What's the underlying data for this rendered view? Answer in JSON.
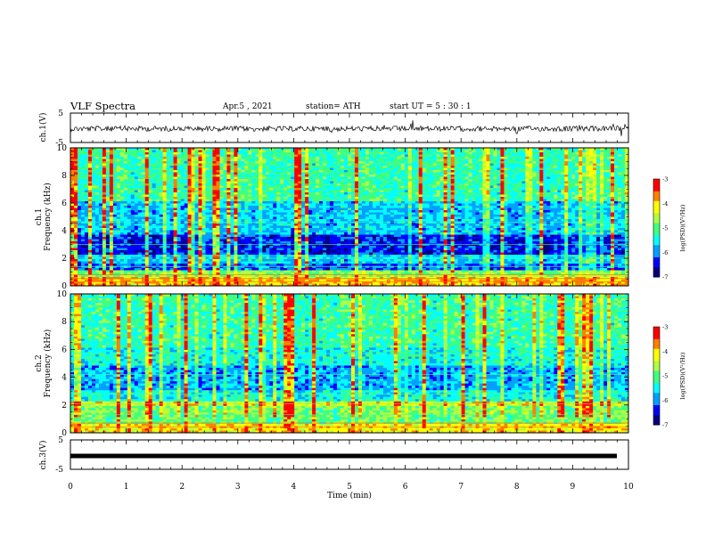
{
  "header": {
    "title": "VLF Spectra",
    "date": "Apr.5 , 2021",
    "station": "station= ATH",
    "start": "start UT = 5 : 30 : 1"
  },
  "chart_data": [
    {
      "type": "line",
      "name": "waveform-ch1",
      "ylabel": "ch.1(V)",
      "ylim": [
        -5,
        5
      ],
      "yticks": [
        "5",
        "-5"
      ],
      "x_range_min": [
        0,
        10
      ],
      "note_values": "noisy waveform around 0 V, amplitude about ±1 V"
    },
    {
      "type": "heatmap",
      "name": "spectrogram-ch1",
      "ylabel": "ch.1 Frequency (kHz)",
      "ylim": [
        0,
        10
      ],
      "yticks": [
        "0",
        "2",
        "4",
        "6",
        "8",
        "10"
      ],
      "colorbar": {
        "range": [
          -7,
          -3
        ],
        "ticks": [
          "-3",
          "-4",
          "-5",
          "-6",
          "-7"
        ],
        "label": "log(PSD)(V²/Hz)"
      }
    },
    {
      "type": "heatmap",
      "name": "spectrogram-ch2",
      "ylabel": "ch.2 Frequency (kHz)",
      "ylim": [
        0,
        10
      ],
      "yticks": [
        "0",
        "2",
        "4",
        "6",
        "8",
        "10"
      ],
      "colorbar": {
        "range": [
          -7,
          -3
        ],
        "ticks": [
          "-3",
          "-4",
          "-5",
          "-6",
          "-7"
        ],
        "label": "log(PSD)(V²/Hz)"
      }
    },
    {
      "type": "line",
      "name": "waveform-ch3",
      "ylabel": "ch.3(V)",
      "ylim": [
        -5,
        5
      ],
      "yticks": [
        "5",
        "-5"
      ],
      "values_note": "thick constant line at about -1.5 V"
    }
  ],
  "xaxis": {
    "label": "Time (min)",
    "ticks": [
      "0",
      "1",
      "2",
      "3",
      "4",
      "5",
      "6",
      "7",
      "8",
      "9",
      "10"
    ],
    "xlim": [
      0,
      10
    ]
  },
  "colors": {
    "colormap": [
      "#000080",
      "#0000ff",
      "#00a0ff",
      "#00ffff",
      "#40ff80",
      "#b0ff40",
      "#ffff00",
      "#ff8000",
      "#ff0000",
      "#ffffff"
    ]
  }
}
